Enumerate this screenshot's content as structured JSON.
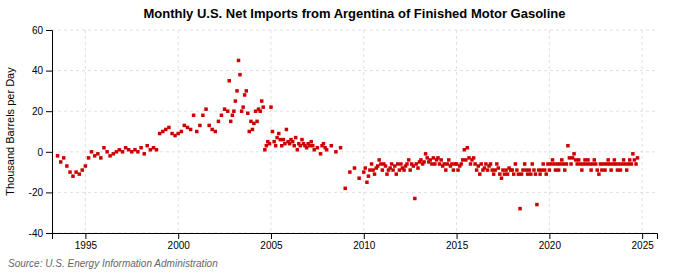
{
  "chart_data": {
    "type": "scatter",
    "title": "Monthly U.S. Net Imports from Argentina of Finished Motor Gasoline",
    "ylabel": "Thousand Barrels per Day",
    "annotations": [
      "Source: U.S. Energy Information Administration"
    ],
    "color": "#cc0000",
    "marker": "square",
    "grid": true,
    "xlim": [
      1993.2,
      2025.8
    ],
    "xticks": [
      1995,
      2000,
      2005,
      2010,
      2015,
      2020,
      2025
    ],
    "ylim": [
      -40,
      60
    ],
    "yticks": [
      -40,
      -20,
      0,
      20,
      40,
      60
    ],
    "x": [
      1993.5,
      1993.67,
      1993.83,
      1994.0,
      1994.17,
      1994.33,
      1994.5,
      1994.67,
      1994.83,
      1995.0,
      1995.17,
      1995.33,
      1995.5,
      1995.67,
      1995.83,
      1996.0,
      1996.17,
      1996.33,
      1996.5,
      1996.67,
      1996.83,
      1997.0,
      1997.17,
      1997.33,
      1997.5,
      1997.67,
      1997.83,
      1998.0,
      1998.17,
      1998.33,
      1998.5,
      1998.67,
      1998.83,
      1999.0,
      1999.17,
      1999.33,
      1999.5,
      1999.67,
      1999.83,
      2000.0,
      2000.17,
      2000.33,
      2000.5,
      2000.67,
      2000.83,
      2001.0,
      2001.17,
      2001.33,
      2001.5,
      2001.67,
      2001.83,
      2002.0,
      2002.17,
      2002.33,
      2002.5,
      2002.67,
      2002.75,
      2002.83,
      2002.92,
      2003.0,
      2003.08,
      2003.17,
      2003.25,
      2003.33,
      2003.42,
      2003.5,
      2003.58,
      2003.67,
      2003.75,
      2003.83,
      2003.92,
      2004.0,
      2004.08,
      2004.17,
      2004.25,
      2004.33,
      2004.42,
      2004.5,
      2004.58,
      2004.67,
      2004.75,
      2004.83,
      2004.92,
      2005.0,
      2005.08,
      2005.17,
      2005.25,
      2005.33,
      2005.42,
      2005.5,
      2005.58,
      2005.67,
      2005.75,
      2005.83,
      2005.92,
      2006.0,
      2006.08,
      2006.17,
      2006.25,
      2006.33,
      2006.42,
      2006.5,
      2006.58,
      2006.67,
      2006.75,
      2006.83,
      2006.92,
      2007.0,
      2007.08,
      2007.17,
      2007.25,
      2007.33,
      2007.5,
      2007.67,
      2007.75,
      2007.83,
      2007.92,
      2008.0,
      2008.25,
      2008.5,
      2008.75,
      2009.0,
      2009.25,
      2009.5,
      2009.75,
      2010.0,
      2010.08,
      2010.17,
      2010.25,
      2010.33,
      2010.42,
      2010.5,
      2010.58,
      2010.67,
      2010.75,
      2010.83,
      2010.92,
      2011.0,
      2011.08,
      2011.17,
      2011.25,
      2011.33,
      2011.42,
      2011.5,
      2011.58,
      2011.67,
      2011.75,
      2011.83,
      2011.92,
      2012.0,
      2012.08,
      2012.17,
      2012.25,
      2012.33,
      2012.42,
      2012.5,
      2012.58,
      2012.67,
      2012.75,
      2012.83,
      2012.92,
      2013.0,
      2013.08,
      2013.17,
      2013.25,
      2013.33,
      2013.42,
      2013.5,
      2013.58,
      2013.67,
      2013.75,
      2013.83,
      2013.92,
      2014.0,
      2014.08,
      2014.17,
      2014.25,
      2014.33,
      2014.42,
      2014.5,
      2014.58,
      2014.67,
      2014.75,
      2014.83,
      2014.92,
      2015.0,
      2015.08,
      2015.17,
      2015.25,
      2015.33,
      2015.42,
      2015.5,
      2015.58,
      2015.67,
      2015.75,
      2015.83,
      2015.92,
      2016.0,
      2016.08,
      2016.17,
      2016.25,
      2016.33,
      2016.42,
      2016.5,
      2016.58,
      2016.67,
      2016.75,
      2016.83,
      2016.92,
      2017.0,
      2017.08,
      2017.17,
      2017.25,
      2017.33,
      2017.42,
      2017.5,
      2017.58,
      2017.67,
      2017.75,
      2017.83,
      2017.92,
      2018.0,
      2018.08,
      2018.17,
      2018.25,
      2018.33,
      2018.42,
      2018.5,
      2018.58,
      2018.67,
      2018.75,
      2018.83,
      2018.92,
      2019.0,
      2019.08,
      2019.17,
      2019.25,
      2019.33,
      2019.42,
      2019.5,
      2019.58,
      2019.67,
      2019.75,
      2019.83,
      2019.92,
      2020.0,
      2020.08,
      2020.17,
      2020.25,
      2020.33,
      2020.42,
      2020.5,
      2020.58,
      2020.67,
      2020.75,
      2020.83,
      2020.92,
      2021.0,
      2021.08,
      2021.17,
      2021.25,
      2021.33,
      2021.42,
      2021.5,
      2021.58,
      2021.67,
      2021.75,
      2021.83,
      2021.92,
      2022.0,
      2022.08,
      2022.17,
      2022.25,
      2022.33,
      2022.42,
      2022.5,
      2022.58,
      2022.67,
      2022.75,
      2022.83,
      2022.92,
      2023.0,
      2023.08,
      2023.17,
      2023.25,
      2023.33,
      2023.42,
      2023.5,
      2023.58,
      2023.67,
      2023.75,
      2023.83,
      2023.92,
      2024.0,
      2024.08,
      2024.17,
      2024.25,
      2024.33,
      2024.42,
      2024.5,
      2024.58,
      2024.67,
      2024.75
    ],
    "values": [
      -2,
      -5,
      -3,
      -7,
      -10,
      -12,
      -10,
      -11,
      -9,
      -7,
      -3,
      0,
      -2,
      -1,
      -3,
      2,
      0,
      -2,
      -1,
      0,
      1,
      0,
      2,
      1,
      0,
      1,
      0,
      2,
      -1,
      3,
      1,
      2,
      1,
      9,
      10,
      11,
      12,
      9,
      8,
      9,
      10,
      13,
      12,
      11,
      18,
      10,
      13,
      18,
      21,
      13,
      11,
      10,
      15,
      18,
      21,
      20,
      35,
      15,
      18,
      20,
      25,
      30,
      45,
      38,
      20,
      22,
      28,
      30,
      19,
      10,
      15,
      11,
      14,
      20,
      15,
      21,
      20,
      25,
      22,
      1,
      3,
      5,
      4,
      22,
      10,
      5,
      3,
      7,
      9,
      6,
      3,
      6,
      4,
      11,
      5,
      4,
      6,
      5,
      3,
      7,
      1,
      4,
      3,
      6,
      4,
      3,
      2,
      4,
      3,
      5,
      3,
      1,
      2,
      -1,
      3,
      4,
      2,
      1,
      3,
      0,
      2,
      -18,
      -10,
      -8,
      -13,
      -10,
      -8,
      -15,
      -12,
      -9,
      -6,
      -9,
      -11,
      -8,
      -7,
      -4,
      -6,
      -9,
      -6,
      -7,
      -11,
      -9,
      -8,
      -6,
      -9,
      -7,
      -11,
      -6,
      -9,
      -6,
      -8,
      -9,
      -7,
      -6,
      -4,
      -9,
      -6,
      -7,
      -23,
      -6,
      -8,
      -5,
      -4,
      -6,
      -5,
      -1,
      -3,
      -5,
      -4,
      -6,
      -3,
      -6,
      -4,
      -3,
      -6,
      -4,
      -7,
      -6,
      -9,
      -6,
      -4,
      -7,
      -6,
      -9,
      -6,
      -6,
      -9,
      -7,
      -6,
      -4,
      1,
      -4,
      2,
      -3,
      -6,
      -4,
      -3,
      -6,
      -9,
      -7,
      -11,
      -6,
      -9,
      -8,
      -6,
      -9,
      -7,
      -6,
      -9,
      -11,
      -9,
      -6,
      -8,
      -11,
      -13,
      -9,
      -11,
      -9,
      -11,
      -8,
      -9,
      -9,
      -11,
      -6,
      -9,
      -11,
      -28,
      -11,
      -9,
      -6,
      -9,
      -11,
      -9,
      -11,
      -6,
      -9,
      -11,
      -26,
      -9,
      -11,
      -9,
      -6,
      -9,
      -11,
      -6,
      -9,
      -6,
      -4,
      -6,
      -9,
      -6,
      -9,
      -6,
      -4,
      -6,
      -9,
      -6,
      3,
      -3,
      -6,
      -3,
      -1,
      -4,
      -6,
      -4,
      -6,
      -9,
      -6,
      -4,
      -6,
      -4,
      -6,
      -9,
      -6,
      -4,
      -6,
      -9,
      -11,
      -6,
      -9,
      -6,
      -9,
      -6,
      -4,
      -6,
      -9,
      -6,
      -4,
      -6,
      -9,
      -6,
      -9,
      -6,
      -4,
      -6,
      -9,
      -6,
      -4,
      -6,
      -1,
      -4,
      -6,
      -3
    ]
  }
}
